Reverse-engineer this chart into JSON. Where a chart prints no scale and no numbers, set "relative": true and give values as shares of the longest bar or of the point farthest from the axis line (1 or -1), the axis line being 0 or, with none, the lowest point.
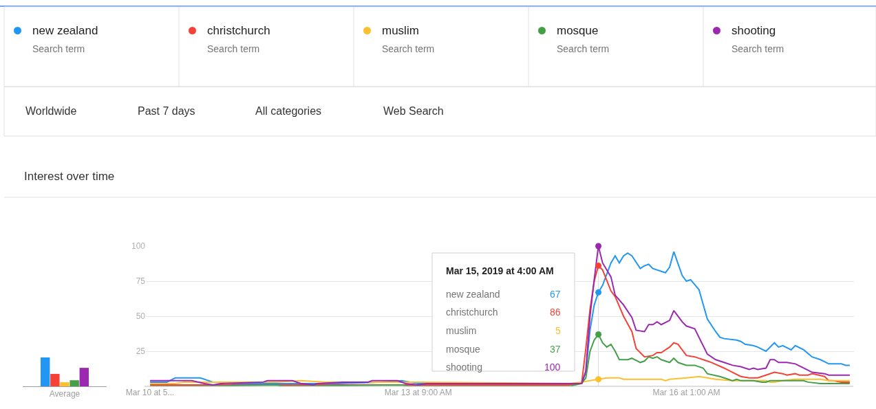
{
  "chart_data": [
    {
      "type": "line",
      "title": "Interest over time",
      "legend": "top",
      "grid": "y",
      "line_style": "solid",
      "xlim": [
        "2019-03-10T16:00",
        "2019-03-17T17:00"
      ],
      "xticks": [
        {
          "value": "2019-03-10T17:00",
          "label": "Mar 10 at 5..."
        },
        {
          "value": "2019-03-13T09:00",
          "label": "Mar 13 at 9:00 AM"
        },
        {
          "value": "2019-03-16T01:00",
          "label": "Mar 16 at 1:00 AM"
        }
      ],
      "ylim": [
        0,
        100
      ],
      "yticks": [
        25,
        50,
        75,
        100
      ],
      "ref_lines": [
        {
          "axis": "x",
          "value": "2019-03-15T04:00",
          "color": "#dddddd"
        }
      ],
      "annotations": [
        "Search term",
        "Search term",
        "Search term",
        "Search term",
        "Search term",
        "Worldwide",
        "Past 7 days",
        "All categories",
        "Web Search",
        "Mar 15, 2019 at 4:00 AM",
        "67",
        "86",
        "5",
        "37",
        "100"
      ],
      "series": [
        {
          "name": "new zealand",
          "color": "#2196f3",
          "x": [
            "2019-03-10T17:00",
            "2019-03-10T21:00",
            "2019-03-10T23:00",
            "2019-03-11T05:00",
            "2019-03-11T08:00",
            "2019-03-11T13:00",
            "2019-03-12T14:00",
            "2019-03-13T00:00",
            "2019-03-13T05:00",
            "2019-03-13T09:00",
            "2019-03-14T21:00",
            "2019-03-15T00:00",
            "2019-03-15T01:00",
            "2019-03-15T02:00",
            "2019-03-15T03:00",
            "2019-03-15T04:00",
            "2019-03-15T05:00",
            "2019-03-15T07:00",
            "2019-03-15T08:00",
            "2019-03-15T09:00",
            "2019-03-15T10:00",
            "2019-03-15T11:00",
            "2019-03-15T12:00",
            "2019-03-15T14:00",
            "2019-03-15T15:00",
            "2019-03-15T16:00",
            "2019-03-15T17:00",
            "2019-03-15T20:00",
            "2019-03-15T21:00",
            "2019-03-15T22:00",
            "2019-03-16T00:00",
            "2019-03-16T01:00",
            "2019-03-16T02:00",
            "2019-03-16T04:00",
            "2019-03-16T06:00",
            "2019-03-16T08:00",
            "2019-03-16T09:00",
            "2019-03-16T10:00",
            "2019-03-16T13:00",
            "2019-03-16T14:00",
            "2019-03-16T15:00",
            "2019-03-16T17:00",
            "2019-03-16T18:00",
            "2019-03-16T20:00",
            "2019-03-16T22:00",
            "2019-03-16T23:00",
            "2019-03-17T00:00",
            "2019-03-17T02:00",
            "2019-03-17T03:00",
            "2019-03-17T05:00",
            "2019-03-17T07:00",
            "2019-03-17T09:00",
            "2019-03-17T11:00",
            "2019-03-17T14:00",
            "2019-03-17T15:00",
            "2019-03-17T16:00"
          ],
          "values": [
            3,
            3,
            6,
            6,
            3,
            2,
            2,
            3,
            4,
            2,
            2,
            2,
            10,
            40,
            58,
            67,
            72,
            88,
            93,
            88,
            93,
            95,
            93,
            84,
            86,
            87,
            84,
            81,
            85,
            96,
            79,
            75,
            76,
            69,
            48,
            39,
            35,
            34,
            33,
            32,
            30,
            29,
            28,
            25,
            31,
            28,
            29,
            26,
            29,
            26,
            21,
            19,
            16,
            16,
            15,
            15
          ]
        },
        {
          "name": "christchurch",
          "color": "#f44336",
          "x": [
            "2019-03-10T17:00",
            "2019-03-14T21:00",
            "2019-03-15T00:00",
            "2019-03-15T01:00",
            "2019-03-15T02:00",
            "2019-03-15T03:00",
            "2019-03-15T04:00",
            "2019-03-15T05:00",
            "2019-03-15T07:00",
            "2019-03-15T08:00",
            "2019-03-15T10:00",
            "2019-03-15T12:00",
            "2019-03-15T13:00",
            "2019-03-15T15:00",
            "2019-03-15T17:00",
            "2019-03-15T18:00",
            "2019-03-15T19:00",
            "2019-03-15T21:00",
            "2019-03-15T22:00",
            "2019-03-15T23:00",
            "2019-03-16T01:00",
            "2019-03-16T03:00",
            "2019-03-16T05:00",
            "2019-03-16T06:00",
            "2019-03-16T07:00",
            "2019-03-16T10:00",
            "2019-03-16T12:00",
            "2019-03-16T14:00",
            "2019-03-16T16:00",
            "2019-03-16T18:00",
            "2019-03-16T20:00",
            "2019-03-16T22:00",
            "2019-03-17T00:00",
            "2019-03-17T01:00",
            "2019-03-17T03:00",
            "2019-03-17T04:00",
            "2019-03-17T06:00",
            "2019-03-17T07:00",
            "2019-03-17T10:00",
            "2019-03-17T11:00",
            "2019-03-17T12:00",
            "2019-03-17T14:00",
            "2019-03-17T16:00"
          ],
          "values": [
            1,
            1,
            2,
            27,
            55,
            75,
            86,
            83,
            68,
            64,
            50,
            39,
            27,
            21,
            22,
            24,
            24,
            28,
            31,
            30,
            22,
            21,
            19,
            18,
            17,
            13,
            10,
            7,
            6,
            6,
            8,
            10,
            9,
            8,
            9,
            8,
            8,
            9,
            7,
            4,
            4,
            3,
            3
          ]
        },
        {
          "name": "muslim",
          "color": "#fbc02d",
          "x": [
            "2019-03-10T17:00",
            "2019-03-10T23:00",
            "2019-03-11T01:00",
            "2019-03-11T07:00",
            "2019-03-11T23:00",
            "2019-03-12T05:00",
            "2019-03-12T11:00",
            "2019-03-13T09:00",
            "2019-03-14T21:00",
            "2019-03-15T00:00",
            "2019-03-15T02:00",
            "2019-03-15T04:00",
            "2019-03-15T06:00",
            "2019-03-15T09:00",
            "2019-03-15T10:00",
            "2019-03-15T19:00",
            "2019-03-15T20:00",
            "2019-03-15T21:00",
            "2019-03-16T01:00",
            "2019-03-16T04:00",
            "2019-03-16T06:00",
            "2019-03-16T08:00",
            "2019-03-16T12:00",
            "2019-03-16T20:00",
            "2019-03-16T21:00",
            "2019-03-16T22:00",
            "2019-03-17T00:00",
            "2019-03-17T03:00",
            "2019-03-17T09:00",
            "2019-03-17T11:00",
            "2019-03-17T16:00"
          ],
          "values": [
            2,
            2,
            3,
            3,
            3,
            4,
            3,
            3,
            2,
            3,
            4,
            5,
            6,
            6,
            5,
            5,
            4,
            5,
            6,
            7,
            6,
            5,
            4,
            4,
            3,
            3,
            4,
            5,
            5,
            4,
            4
          ]
        },
        {
          "name": "mosque",
          "color": "#43a047",
          "x": [
            "2019-03-10T17:00",
            "2019-03-11T03:00",
            "2019-03-11T23:00",
            "2019-03-12T01:00",
            "2019-03-13T05:00",
            "2019-03-13T07:00",
            "2019-03-14T21:00",
            "2019-03-15T00:00",
            "2019-03-15T01:00",
            "2019-03-15T02:00",
            "2019-03-15T03:00",
            "2019-03-15T04:00",
            "2019-03-15T05:00",
            "2019-03-15T06:00",
            "2019-03-15T07:00",
            "2019-03-15T08:00",
            "2019-03-15T09:00",
            "2019-03-15T11:00",
            "2019-03-15T12:00",
            "2019-03-15T14:00",
            "2019-03-15T15:00",
            "2019-03-15T16:00",
            "2019-03-15T17:00",
            "2019-03-15T18:00",
            "2019-03-15T19:00",
            "2019-03-15T21:00",
            "2019-03-15T22:00",
            "2019-03-15T23:00",
            "2019-03-16T01:00",
            "2019-03-16T03:00",
            "2019-03-16T05:00",
            "2019-03-16T06:00",
            "2019-03-16T09:00",
            "2019-03-16T11:00",
            "2019-03-16T12:00",
            "2019-03-16T13:00",
            "2019-03-16T14:00",
            "2019-03-16T17:00",
            "2019-03-16T19:00",
            "2019-03-16T20:00",
            "2019-03-16T21:00",
            "2019-03-17T05:00",
            "2019-03-17T06:00",
            "2019-03-17T09:00",
            "2019-03-17T11:00",
            "2019-03-17T16:00"
          ],
          "values": [
            0,
            0,
            1,
            0,
            1,
            0,
            0,
            2,
            6,
            25,
            33,
            37,
            31,
            28,
            30,
            25,
            19,
            19,
            20,
            17,
            18,
            21,
            20,
            21,
            19,
            17,
            20,
            17,
            15,
            15,
            13,
            9,
            7,
            5,
            4,
            5,
            4,
            4,
            3,
            3,
            4,
            4,
            3,
            2,
            2,
            2
          ]
        },
        {
          "name": "shooting",
          "color": "#9c27b0",
          "x": [
            "2019-03-10T17:00",
            "2019-03-10T20:00",
            "2019-03-11T03:00",
            "2019-03-11T06:00",
            "2019-03-11T08:00",
            "2019-03-11T10:00",
            "2019-03-11T20:00",
            "2019-03-11T21:00",
            "2019-03-12T03:00",
            "2019-03-12T05:00",
            "2019-03-12T08:00",
            "2019-03-12T09:00",
            "2019-03-12T15:00",
            "2019-03-12T21:00",
            "2019-03-12T22:00",
            "2019-03-13T04:00",
            "2019-03-13T06:00",
            "2019-03-13T09:00",
            "2019-03-13T11:00",
            "2019-03-15T00:00",
            "2019-03-15T01:00",
            "2019-03-15T02:00",
            "2019-03-15T03:00",
            "2019-03-15T04:00",
            "2019-03-15T05:00",
            "2019-03-15T07:00",
            "2019-03-15T08:00",
            "2019-03-15T10:00",
            "2019-03-15T12:00",
            "2019-03-15T13:00",
            "2019-03-15T15:00",
            "2019-03-15T16:00",
            "2019-03-15T17:00",
            "2019-03-15T18:00",
            "2019-03-15T19:00",
            "2019-03-15T21:00",
            "2019-03-15T22:00",
            "2019-03-16T00:00",
            "2019-03-16T01:00",
            "2019-03-16T03:00",
            "2019-03-16T04:00",
            "2019-03-16T06:00",
            "2019-03-16T08:00",
            "2019-03-16T10:00",
            "2019-03-16T12:00",
            "2019-03-16T14:00",
            "2019-03-16T16:00",
            "2019-03-16T17:00",
            "2019-03-16T18:00",
            "2019-03-16T20:00",
            "2019-03-16T21:00",
            "2019-03-16T22:00",
            "2019-03-16T23:00",
            "2019-03-17T01:00",
            "2019-03-17T03:00",
            "2019-03-17T05:00",
            "2019-03-17T07:00",
            "2019-03-17T10:00",
            "2019-03-17T11:00",
            "2019-03-17T16:00"
          ],
          "values": [
            4,
            4,
            4,
            2,
            1,
            2,
            3,
            4,
            4,
            2,
            1,
            2,
            3,
            3,
            4,
            4,
            2,
            1,
            2,
            2,
            11,
            50,
            76,
            100,
            88,
            78,
            65,
            58,
            49,
            40,
            39,
            44,
            44,
            46,
            44,
            47,
            54,
            46,
            43,
            41,
            35,
            23,
            19,
            17,
            15,
            14,
            12,
            13,
            12,
            13,
            19,
            19,
            17,
            17,
            16,
            13,
            10,
            9,
            8,
            8
          ]
        }
      ]
    },
    {
      "type": "bar",
      "relative": true,
      "categories": [
        "Average"
      ],
      "series": [
        {
          "color": "#2196f3",
          "values": [
            1
          ]
        },
        {
          "color": "#f44336",
          "values": [
            0.43
          ]
        },
        {
          "color": "#fbc02d",
          "values": [
            0.14
          ]
        },
        {
          "color": "#43a047",
          "values": [
            0.21
          ]
        },
        {
          "color": "#9c27b0",
          "values": [
            0.64
          ]
        }
      ]
    }
  ]
}
